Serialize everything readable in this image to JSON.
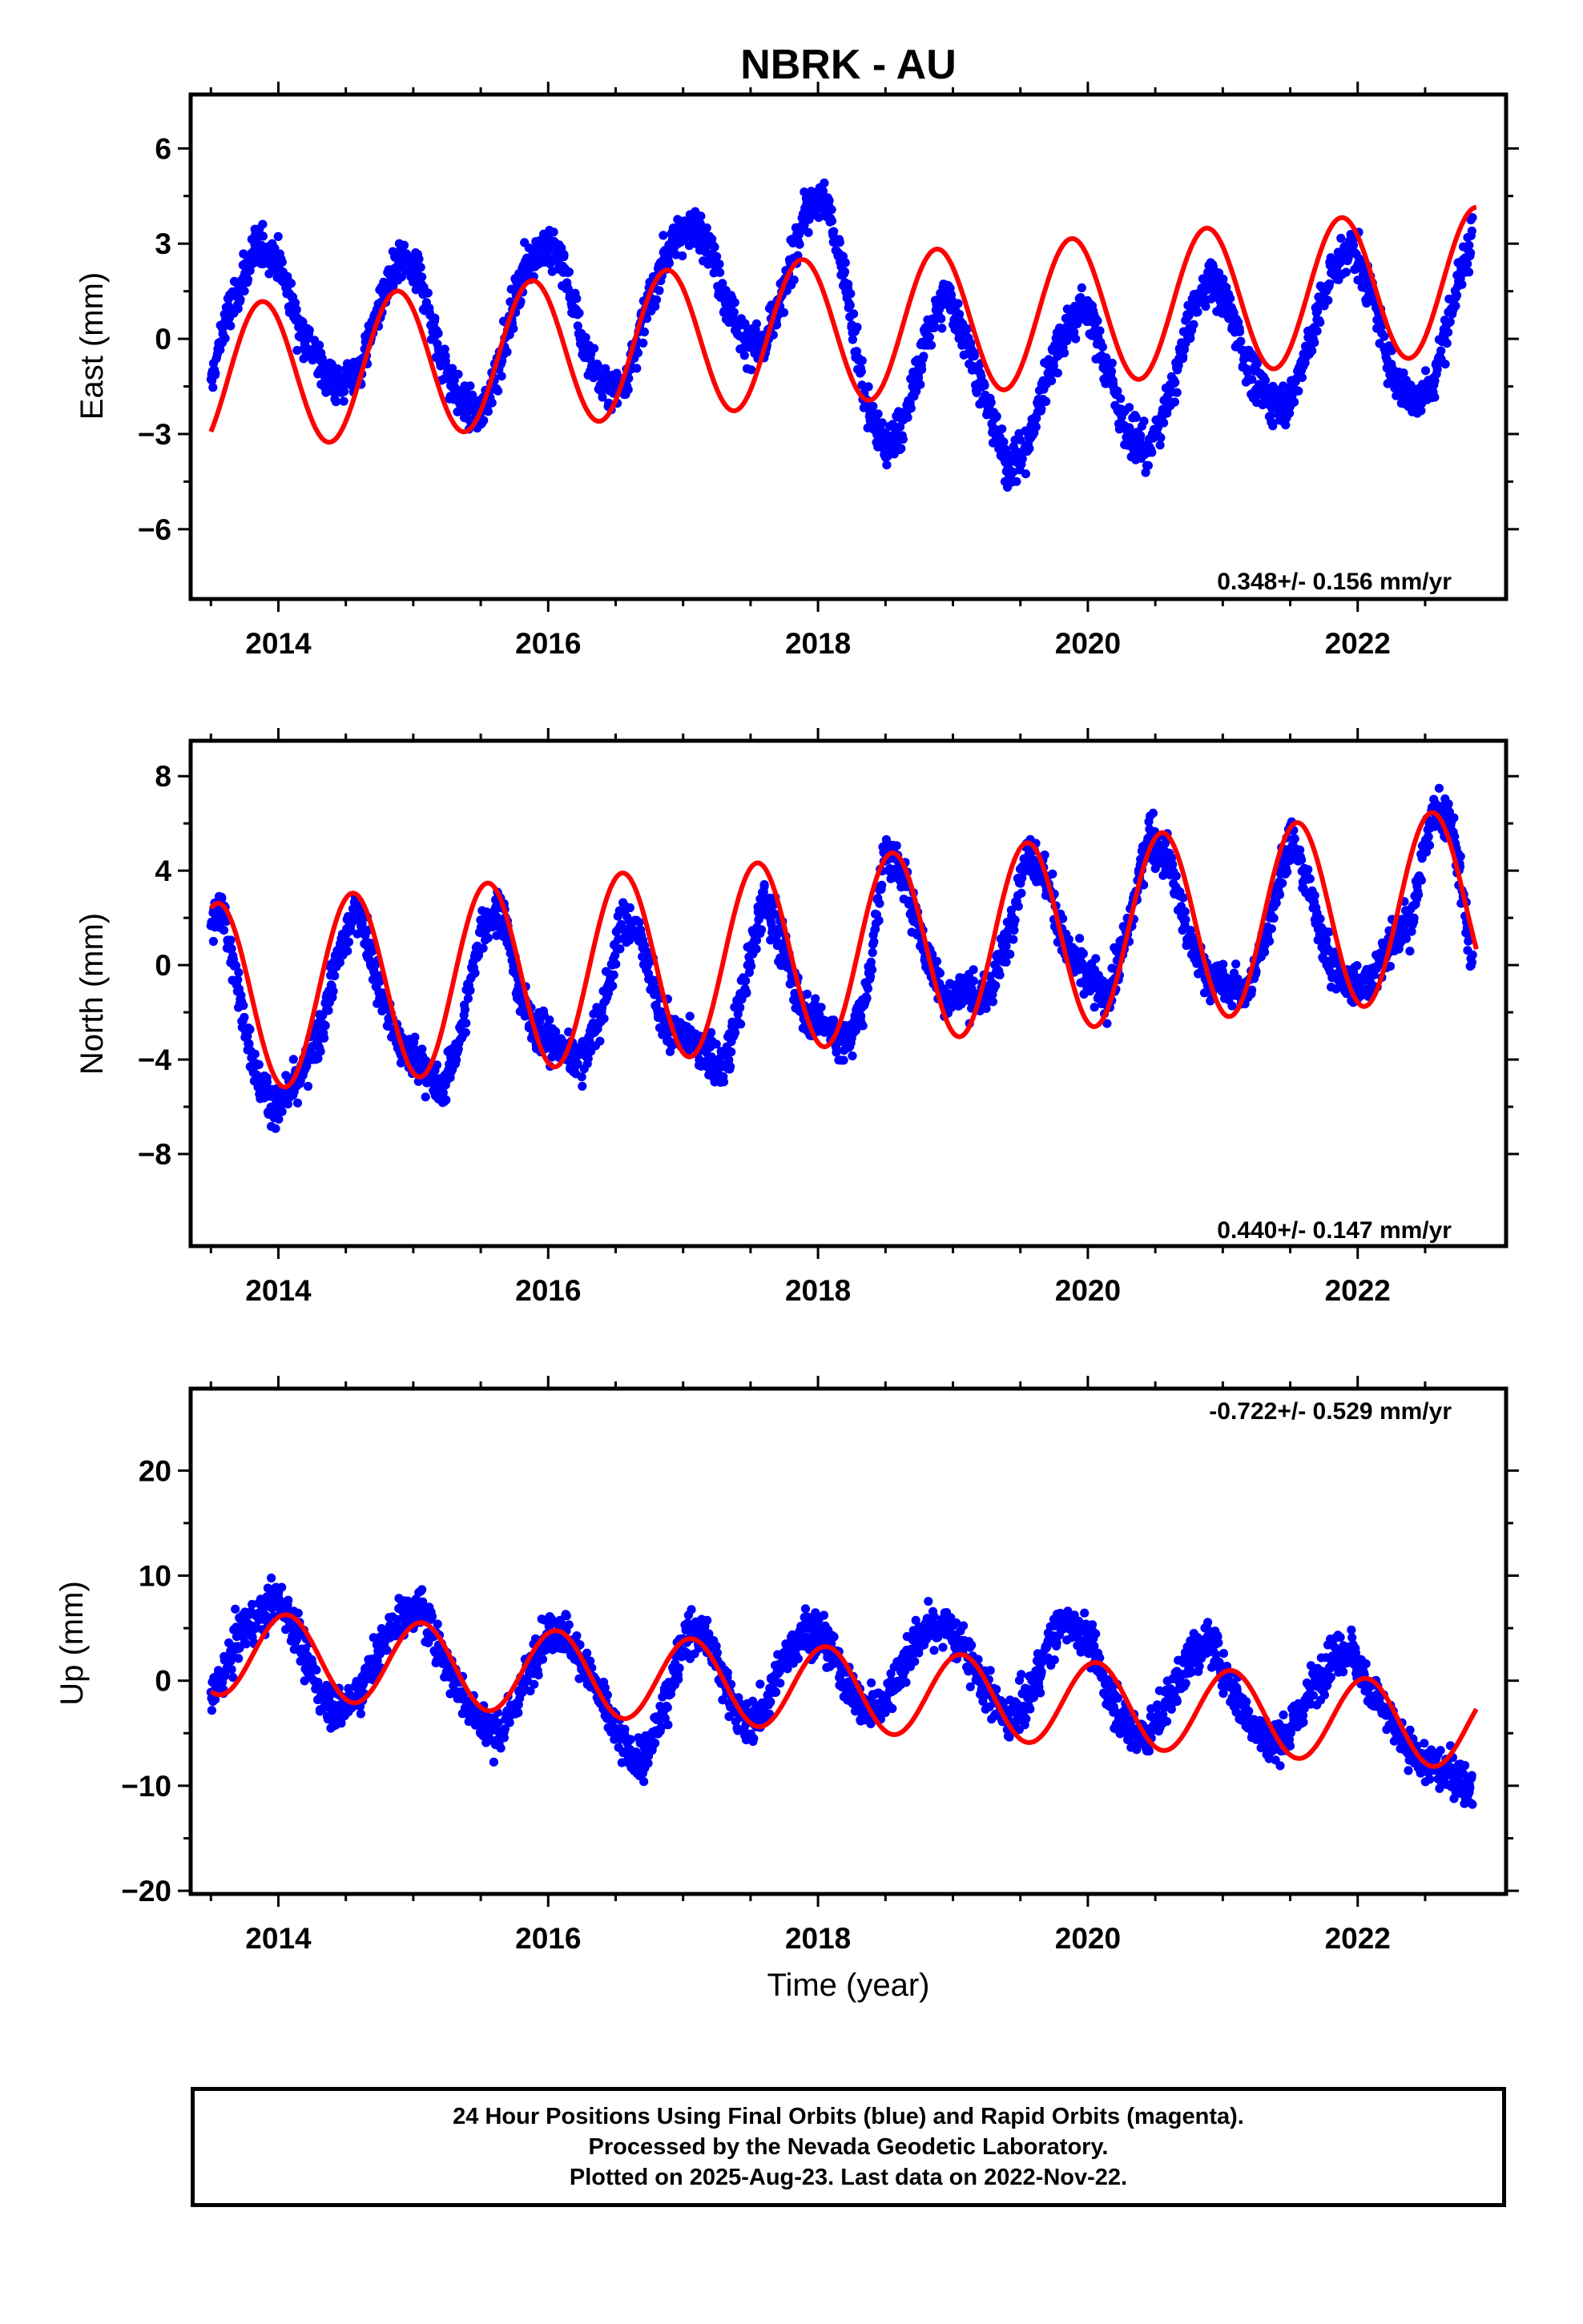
{
  "title": "NBRK - AU",
  "xlabel": "Time (year)",
  "footer": {
    "line1": "24 Hour Positions Using Final Orbits (blue) and Rapid Orbits (magenta).",
    "line2": "Processed by the Nevada Geodetic Laboratory.",
    "line3": "Plotted on 2025-Aug-23. Last data on 2022-Nov-22."
  },
  "colors": {
    "data": "#0000ff",
    "model": "#ff0000",
    "frame": "#000000"
  },
  "chart_data": [
    {
      "type": "scatter",
      "panel": "East",
      "ylabel": "East (mm)",
      "xlim": [
        2013.35,
        2023.1
      ],
      "ylim": [
        -8.2,
        7.7
      ],
      "xticks": [
        2014,
        2016,
        2018,
        2020,
        2022
      ],
      "yticks": [
        -6,
        -3,
        0,
        3,
        6
      ],
      "ytick_labels": [
        "−6",
        "−3",
        "0",
        "3",
        "6"
      ],
      "rate_text": "0.348+/- 0.156 mm/yr",
      "rate_position": "bottom-right",
      "series": [
        {
          "kind": "points",
          "x": [
            2013.5,
            2013.6,
            2013.7,
            2013.85,
            2014.0,
            2014.15,
            2014.3,
            2014.45,
            2014.6,
            2014.75,
            2014.9,
            2015.05,
            2015.2,
            2015.35,
            2015.5,
            2015.65,
            2015.8,
            2015.95,
            2016.1,
            2016.25,
            2016.4,
            2016.55,
            2016.7,
            2016.85,
            2017.0,
            2017.15,
            2017.3,
            2017.45,
            2017.6,
            2017.75,
            2017.9,
            2018.05,
            2018.2,
            2018.35,
            2018.5,
            2018.65,
            2018.8,
            2018.95,
            2019.1,
            2019.25,
            2019.4,
            2019.55,
            2019.7,
            2019.85,
            2020.0,
            2020.15,
            2020.3,
            2020.45,
            2020.6,
            2020.75,
            2020.9,
            2021.05,
            2021.2,
            2021.35,
            2021.5,
            2021.65,
            2021.8,
            2021.95,
            2022.1,
            2022.25,
            2022.4,
            2022.55,
            2022.7,
            2022.85
          ],
          "y": [
            -1.5,
            0.5,
            1.5,
            3.0,
            2.5,
            0.5,
            -0.8,
            -1.5,
            -1.0,
            1.0,
            2.5,
            2.0,
            -0.5,
            -2.0,
            -2.5,
            -0.5,
            2.0,
            3.0,
            2.5,
            0.0,
            -1.5,
            -1.5,
            0.5,
            2.5,
            3.5,
            3.5,
            1.5,
            0.0,
            -0.3,
            1.5,
            4.0,
            4.5,
            2.0,
            -2.0,
            -3.5,
            -2.5,
            0.0,
            1.5,
            0.0,
            -2.0,
            -4.0,
            -3.5,
            -1.0,
            0.5,
            1.0,
            -1.0,
            -3.0,
            -3.5,
            -2.0,
            0.5,
            2.0,
            1.0,
            -1.0,
            -2.0,
            -2.0,
            0.0,
            2.0,
            3.0,
            1.5,
            -1.0,
            -2.0,
            -1.5,
            1.0,
            3.5
          ]
        },
        {
          "kind": "model",
          "mean": [
            2013.5,
            2022.88
          ],
          "mean_values": [
            -1.25,
            1.85
          ],
          "amplitude": 2.3,
          "peak_phase": 0.88
        }
      ]
    },
    {
      "type": "scatter",
      "panel": "North",
      "ylabel": "North (mm)",
      "xlim": [
        2013.35,
        2023.1
      ],
      "ylim": [
        -11.9,
        9.5
      ],
      "xticks": [
        2014,
        2016,
        2018,
        2020,
        2022
      ],
      "yticks": [
        -8,
        -4,
        0,
        4,
        8
      ],
      "ytick_labels": [
        "−8",
        "−4",
        "0",
        "4",
        "8"
      ],
      "rate_text": "0.440+/- 0.147 mm/yr",
      "rate_position": "bottom-right",
      "series": [
        {
          "kind": "points",
          "x": [
            2013.5,
            2013.6,
            2013.7,
            2013.85,
            2014.0,
            2014.15,
            2014.3,
            2014.45,
            2014.6,
            2014.75,
            2014.9,
            2015.05,
            2015.2,
            2015.35,
            2015.5,
            2015.65,
            2015.8,
            2015.95,
            2016.1,
            2016.25,
            2016.4,
            2016.55,
            2016.7,
            2016.85,
            2017.0,
            2017.15,
            2017.3,
            2017.45,
            2017.6,
            2017.75,
            2017.9,
            2018.05,
            2018.2,
            2018.35,
            2018.5,
            2018.65,
            2018.8,
            2018.95,
            2019.1,
            2019.25,
            2019.4,
            2019.55,
            2019.7,
            2019.85,
            2020.0,
            2020.15,
            2020.3,
            2020.45,
            2020.6,
            2020.75,
            2020.9,
            2021.05,
            2021.2,
            2021.35,
            2021.5,
            2021.65,
            2021.8,
            2021.95,
            2022.1,
            2022.25,
            2022.4,
            2022.55,
            2022.7,
            2022.85
          ],
          "y": [
            1.5,
            2.5,
            -1.0,
            -5.0,
            -6.0,
            -5.0,
            -3.0,
            0.5,
            2.5,
            -1.0,
            -3.5,
            -4.0,
            -5.5,
            -3.0,
            1.5,
            2.5,
            -1.5,
            -3.0,
            -3.5,
            -4.0,
            -2.0,
            2.0,
            1.0,
            -2.5,
            -3.0,
            -3.5,
            -4.5,
            -1.0,
            3.0,
            0.5,
            -2.0,
            -2.5,
            -3.5,
            -1.5,
            5.0,
            3.5,
            0.5,
            -1.5,
            -1.0,
            -1.5,
            1.0,
            5.0,
            3.5,
            0.5,
            -0.5,
            -1.5,
            1.5,
            5.5,
            4.5,
            1.0,
            -0.5,
            -1.0,
            -1.0,
            2.0,
            5.5,
            3.0,
            0.0,
            -1.0,
            -0.5,
            1.0,
            2.0,
            6.5,
            6.0,
            0.0
          ]
        },
        {
          "kind": "model",
          "mean": [
            2013.5,
            2022.88
          ],
          "mean_values": [
            -1.4,
            2.6
          ],
          "amplitude": 4.0,
          "peak_phase": 0.55
        }
      ]
    },
    {
      "type": "scatter",
      "panel": "Up",
      "ylabel": "Up (mm)",
      "xlim": [
        2013.35,
        2023.1
      ],
      "ylim": [
        -20.3,
        27.8
      ],
      "xticks": [
        2014,
        2016,
        2018,
        2020,
        2022
      ],
      "yticks": [
        -20,
        -10,
        0,
        10,
        20
      ],
      "ytick_labels": [
        "−20",
        "−10",
        "0",
        "10",
        "20"
      ],
      "rate_text": "-0.722+/- 0.529 mm/yr",
      "rate_position": "top-right",
      "series": [
        {
          "kind": "points",
          "x": [
            2013.5,
            2013.6,
            2013.7,
            2013.85,
            2014.0,
            2014.15,
            2014.3,
            2014.45,
            2014.6,
            2014.75,
            2014.9,
            2015.05,
            2015.2,
            2015.35,
            2015.5,
            2015.65,
            2015.8,
            2015.95,
            2016.1,
            2016.25,
            2016.4,
            2016.55,
            2016.7,
            2016.85,
            2017.0,
            2017.15,
            2017.3,
            2017.45,
            2017.6,
            2017.75,
            2017.9,
            2018.05,
            2018.2,
            2018.35,
            2018.5,
            2018.65,
            2018.8,
            2018.95,
            2019.1,
            2019.25,
            2019.4,
            2019.55,
            2019.7,
            2019.85,
            2020.0,
            2020.15,
            2020.3,
            2020.45,
            2020.6,
            2020.75,
            2020.9,
            2021.05,
            2021.2,
            2021.35,
            2021.5,
            2021.65,
            2021.8,
            2021.95,
            2022.1,
            2022.25,
            2022.4,
            2022.55,
            2022.7,
            2022.85
          ],
          "y": [
            -2.0,
            1.0,
            4.0,
            6.0,
            8.0,
            4.0,
            -1.0,
            -3.0,
            -1.0,
            3.0,
            6.0,
            7.0,
            3.0,
            -1.0,
            -4.0,
            -5.0,
            -1.0,
            4.0,
            5.0,
            2.0,
            -2.0,
            -6.0,
            -8.0,
            -3.0,
            4.0,
            5.0,
            0.0,
            -4.0,
            -3.0,
            2.0,
            5.0,
            4.0,
            0.0,
            -3.0,
            -2.0,
            2.0,
            5.0,
            5.0,
            3.0,
            -1.0,
            -4.0,
            -2.0,
            3.0,
            6.0,
            4.0,
            -1.0,
            -5.0,
            -5.0,
            -2.0,
            2.0,
            4.0,
            0.0,
            -4.0,
            -6.0,
            -5.0,
            -1.0,
            2.0,
            3.0,
            -1.0,
            -4.0,
            -7.0,
            -8.0,
            -9.0,
            -10.0
          ]
        },
        {
          "kind": "model",
          "mean": [
            2013.5,
            2022.88
          ],
          "mean_values": [
            2.7,
            -4.4
          ],
          "amplitude": 4.0,
          "peak_phase": 0.06
        }
      ]
    }
  ]
}
